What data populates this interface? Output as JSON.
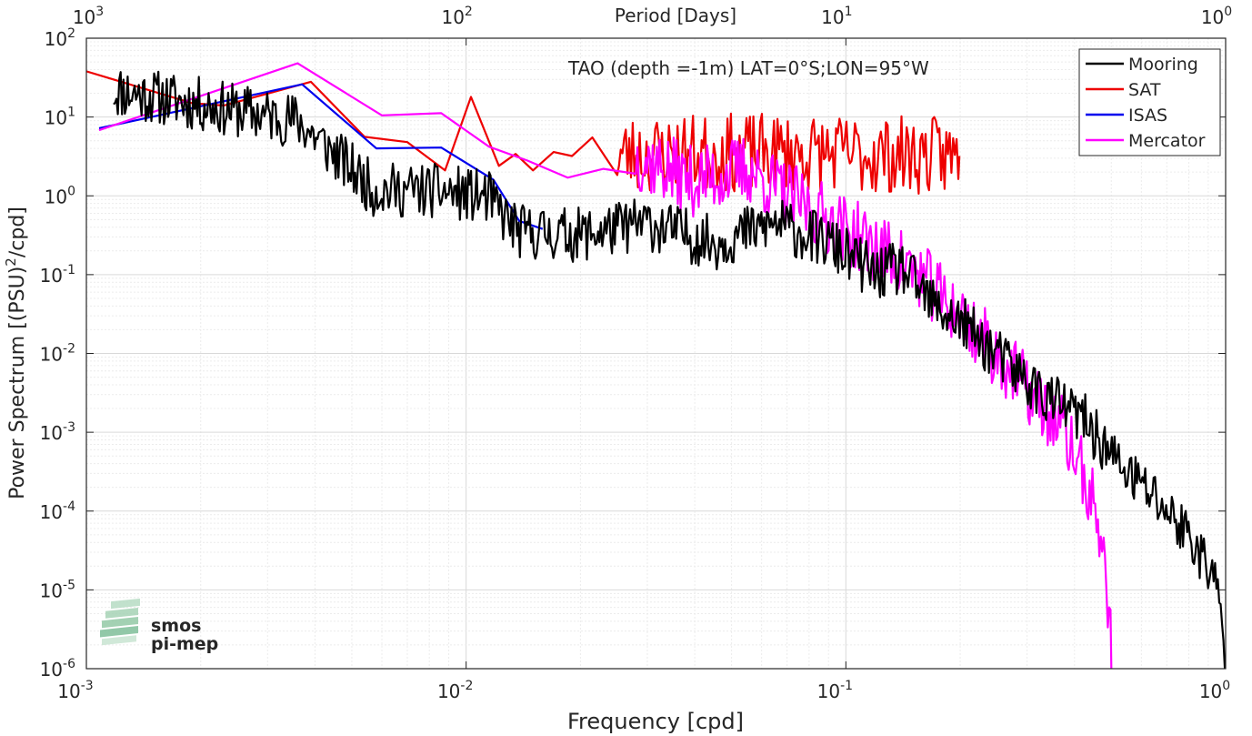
{
  "chart_data": {
    "type": "line",
    "title": "TAO (depth =-1m) LAT=0°S;LON=95°W",
    "xlabel": "Frequency [cpd]",
    "ylabel_main": "Power Spectrum [(PSU)",
    "ylabel_sup": "2",
    "ylabel_tail": "/cpd]",
    "x2label": "Period [Days]",
    "xscale": "log",
    "yscale": "log",
    "xlim": [
      0.001,
      1
    ],
    "ylim": [
      1e-06,
      100
    ],
    "grid": true,
    "legend_position": "top-right",
    "x_ticks": [
      {
        "value": 0.001,
        "base": "10",
        "exp": "-3"
      },
      {
        "value": 0.01,
        "base": "10",
        "exp": "-2"
      },
      {
        "value": 0.1,
        "base": "10",
        "exp": "-1"
      },
      {
        "value": 1,
        "base": "10",
        "exp": "0"
      }
    ],
    "x2_ticks": [
      {
        "value": 0.001,
        "base": "10",
        "exp": "3"
      },
      {
        "value": 0.01,
        "base": "10",
        "exp": "2"
      },
      {
        "value": 0.1,
        "base": "10",
        "exp": "1"
      },
      {
        "value": 1,
        "base": "10",
        "exp": "0"
      }
    ],
    "y_ticks": [
      {
        "value": 100,
        "base": "10",
        "exp": "2"
      },
      {
        "value": 10,
        "base": "10",
        "exp": "1"
      },
      {
        "value": 1,
        "base": "10",
        "exp": "0"
      },
      {
        "value": 0.1,
        "base": "10",
        "exp": "-1"
      },
      {
        "value": 0.01,
        "base": "10",
        "exp": "-2"
      },
      {
        "value": 0.001,
        "base": "10",
        "exp": "-3"
      },
      {
        "value": 0.0001,
        "base": "10",
        "exp": "-4"
      },
      {
        "value": 1e-05,
        "base": "10",
        "exp": "-5"
      },
      {
        "value": 1e-06,
        "base": "10",
        "exp": "-6"
      }
    ],
    "series": [
      {
        "name": "Mooring",
        "color": "#000000",
        "generator": {
          "f0": 0.00118,
          "f1": 0.995,
          "ratio": 1.0085,
          "amp": 0.35,
          "seed": 11
        },
        "anchors": [
          [
            0.00118,
            22
          ],
          [
            0.0036,
            9
          ],
          [
            0.0057,
            1.2
          ],
          [
            0.0085,
            1.15
          ],
          [
            0.0114,
            0.95
          ],
          [
            0.0137,
            0.35
          ],
          [
            0.02,
            0.32
          ],
          [
            0.03,
            0.45
          ],
          [
            0.045,
            0.25
          ],
          [
            0.065,
            0.45
          ],
          [
            0.09,
            0.25
          ],
          [
            0.12,
            0.1
          ],
          [
            0.14,
            0.12
          ],
          [
            0.17,
            0.04
          ],
          [
            0.2,
            0.025
          ],
          [
            0.26,
            0.008
          ],
          [
            0.33,
            0.003
          ],
          [
            0.42,
            0.0015
          ],
          [
            0.52,
            0.0004
          ],
          [
            0.65,
            0.00015
          ],
          [
            0.8,
            5e-05
          ],
          [
            0.93,
            1.5e-05
          ],
          [
            0.97,
            5e-06
          ],
          [
            0.995,
            1e-06
          ]
        ]
      },
      {
        "name": "SAT",
        "color": "#ee0000",
        "generator": {
          "f0": 0.025,
          "f1": 0.199,
          "ratio": 1.0105,
          "amp": 0.5,
          "seed": 23
        },
        "anchors": [
          [
            0.001,
            38
          ],
          [
            0.0019,
            15
          ],
          [
            0.0023,
            14
          ],
          [
            0.0039,
            28
          ],
          [
            0.0054,
            5.6
          ],
          [
            0.007,
            4.8
          ],
          [
            0.0088,
            2.1
          ],
          [
            0.0103,
            18
          ],
          [
            0.0122,
            2.4
          ],
          [
            0.0135,
            3.4
          ],
          [
            0.015,
            2.1
          ],
          [
            0.017,
            3.6
          ],
          [
            0.019,
            3.2
          ],
          [
            0.0215,
            5.5
          ],
          [
            0.025,
            3.3
          ],
          [
            0.04,
            3.5
          ],
          [
            0.07,
            3.5
          ],
          [
            0.12,
            3.3
          ],
          [
            0.199,
            3.2
          ]
        ]
      },
      {
        "name": "ISAS",
        "color": "#0000ee",
        "generator": null,
        "anchors": [
          [
            0.00108,
            7.2
          ],
          [
            0.0037,
            26
          ],
          [
            0.0058,
            4.0
          ],
          [
            0.0086,
            4.1
          ],
          [
            0.0118,
            1.6
          ],
          [
            0.0138,
            0.48
          ],
          [
            0.0159,
            0.38
          ]
        ]
      },
      {
        "name": "Mercator",
        "color": "#ff00ff",
        "generator": {
          "f0": 0.028,
          "f1": 0.5,
          "ratio": 1.0085,
          "amp": 0.45,
          "seed": 37
        },
        "anchors": [
          [
            0.00108,
            6.8
          ],
          [
            0.0036,
            48
          ],
          [
            0.006,
            10.5
          ],
          [
            0.0086,
            11.2
          ],
          [
            0.0115,
            4.2
          ],
          [
            0.0145,
            2.8
          ],
          [
            0.0185,
            1.7
          ],
          [
            0.023,
            2.2
          ],
          [
            0.028,
            3.2
          ],
          [
            0.04,
            1.5
          ],
          [
            0.055,
            2.2
          ],
          [
            0.07,
            1.0
          ],
          [
            0.09,
            0.5
          ],
          [
            0.12,
            0.22
          ],
          [
            0.15,
            0.12
          ],
          [
            0.2,
            0.03
          ],
          [
            0.26,
            0.008
          ],
          [
            0.33,
            0.002
          ],
          [
            0.37,
            0.0012
          ],
          [
            0.42,
            0.0003
          ],
          [
            0.46,
            8e-05
          ],
          [
            0.48,
            2e-05
          ],
          [
            0.495,
            5e-06
          ],
          [
            0.5,
            1e-06
          ]
        ]
      }
    ]
  },
  "logo": {
    "line1": "smos",
    "line2": "pi-mep",
    "color": "#7fbf9a"
  }
}
